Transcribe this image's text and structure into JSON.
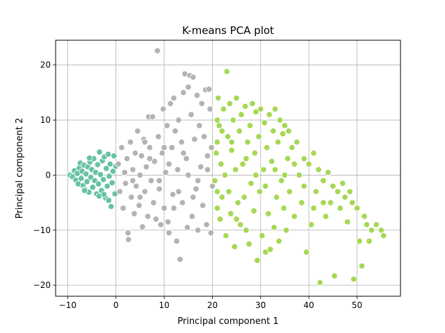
{
  "chart_data": {
    "type": "scatter",
    "title": "K-means PCA plot",
    "xlabel": "Principal component 1",
    "ylabel": "Principal component 2",
    "xlim": [
      -12.5,
      59
    ],
    "ylim": [
      -22,
      24.5
    ],
    "xticks": [
      -10,
      0,
      10,
      20,
      30,
      40,
      50
    ],
    "yticks": [
      -20,
      -10,
      0,
      10,
      20
    ],
    "grid": true,
    "legend": "none",
    "colors": {
      "cluster_0": "#66c2a5",
      "cluster_1": "#b3b3b3",
      "cluster_2": "#a6d854",
      "marker_edge": "#ffffff",
      "grid": "#b0b0b0",
      "axes": "#000000"
    },
    "series": [
      {
        "color_key": "cluster_0",
        "points": [
          [
            -9.5,
            0
          ],
          [
            -9,
            -0.3
          ],
          [
            -8.6,
            0.8
          ],
          [
            -8.3,
            -0.9
          ],
          [
            -8,
            0.3
          ],
          [
            -7.8,
            -1.6
          ],
          [
            -7.6,
            1.3
          ],
          [
            -7.4,
            2.2
          ],
          [
            -7.2,
            -0.6
          ],
          [
            -7,
            0.7
          ],
          [
            -6.8,
            -1.9
          ],
          [
            -6.6,
            1.8
          ],
          [
            -6.4,
            -2.6
          ],
          [
            -6.2,
            0.2
          ],
          [
            -6,
            -1.2
          ],
          [
            -5.8,
            1.5
          ],
          [
            -5.6,
            -3.1
          ],
          [
            -5.4,
            2.4
          ],
          [
            -5.2,
            -0.4
          ],
          [
            -5,
            1
          ],
          [
            -4.8,
            -2.2
          ],
          [
            -4.6,
            3
          ],
          [
            -4.4,
            -1
          ],
          [
            -4.2,
            0.5
          ],
          [
            -4,
            -3.4
          ],
          [
            -3.8,
            1.9
          ],
          [
            -3.6,
            -1.6
          ],
          [
            -3.4,
            4.2
          ],
          [
            -3.2,
            0.1
          ],
          [
            -3,
            -2.8
          ],
          [
            -2.8,
            2.6
          ],
          [
            -2.6,
            -0.8
          ],
          [
            -2.4,
            3.3
          ],
          [
            -2.2,
            -4.1
          ],
          [
            -2,
            1.2
          ],
          [
            -1.8,
            -2
          ],
          [
            -1.6,
            3.8
          ],
          [
            -1.4,
            -0.2
          ],
          [
            -1.2,
            2
          ],
          [
            -1,
            -5.7
          ],
          [
            -0.8,
            -1.4
          ],
          [
            -0.6,
            0.7
          ],
          [
            -0.4,
            3.5
          ],
          [
            -0.2,
            -3.4
          ],
          [
            0,
            1.6
          ],
          [
            -3.5,
            -3.8
          ],
          [
            -2.5,
            -3.5
          ],
          [
            -1.5,
            -4.6
          ],
          [
            -6.5,
            -2.8
          ],
          [
            -5.5,
            3.1
          ]
        ]
      },
      {
        "color_key": "cluster_1",
        "points": [
          [
            0.5,
            2
          ],
          [
            0.8,
            -3
          ],
          [
            1.2,
            5
          ],
          [
            1.5,
            -6
          ],
          [
            1.8,
            0.5
          ],
          [
            2,
            -1.5
          ],
          [
            2.3,
            3
          ],
          [
            2.5,
            -10.5
          ],
          [
            2.6,
            -11.7
          ],
          [
            3,
            6
          ],
          [
            3.2,
            -4
          ],
          [
            3.5,
            1
          ],
          [
            3.8,
            -7
          ],
          [
            4,
            4
          ],
          [
            4.2,
            -2
          ],
          [
            4.5,
            8
          ],
          [
            4.8,
            -5.5
          ],
          [
            5,
            0
          ],
          [
            5.3,
            3.5
          ],
          [
            5.5,
            -9.4
          ],
          [
            5.8,
            6.5
          ],
          [
            6,
            -3
          ],
          [
            6.3,
            1.5
          ],
          [
            6.6,
            -7.5
          ],
          [
            6.8,
            10.6
          ],
          [
            7,
            5
          ],
          [
            7.3,
            -1
          ],
          [
            7.6,
            10.6
          ],
          [
            7.8,
            -5
          ],
          [
            8,
            2.5
          ],
          [
            8.3,
            -8
          ],
          [
            8.6,
            22.6
          ],
          [
            8.8,
            7
          ],
          [
            9,
            -2.5
          ],
          [
            9.3,
            -9
          ],
          [
            9.6,
            4
          ],
          [
            9.8,
            12
          ],
          [
            10,
            -6
          ],
          [
            10.3,
            0.5
          ],
          [
            10.6,
            9
          ],
          [
            10.8,
            -8.5
          ],
          [
            11,
            -10.5
          ],
          [
            11.3,
            13
          ],
          [
            11.6,
            5
          ],
          [
            11.8,
            -3.5
          ],
          [
            12,
            14
          ],
          [
            12.3,
            8
          ],
          [
            12.6,
            -12
          ],
          [
            12.8,
            1
          ],
          [
            13,
            10
          ],
          [
            13.3,
            -15.3
          ],
          [
            13.6,
            6
          ],
          [
            13.8,
            -5
          ],
          [
            14,
            15
          ],
          [
            14.3,
            18.4
          ],
          [
            14.6,
            3
          ],
          [
            14.8,
            -9.5
          ],
          [
            15,
            16
          ],
          [
            15.3,
            18.1
          ],
          [
            15.6,
            11
          ],
          [
            15.8,
            -7.5
          ],
          [
            16,
            17.8
          ],
          [
            16.3,
            6.5
          ],
          [
            16.6,
            -2.5
          ],
          [
            16.8,
            14.5
          ],
          [
            17,
            -10
          ],
          [
            17.3,
            9
          ],
          [
            17.6,
            1.5
          ],
          [
            17.8,
            13
          ],
          [
            18,
            -5.5
          ],
          [
            18.3,
            7
          ],
          [
            18.6,
            15.5
          ],
          [
            18.8,
            -9
          ],
          [
            19,
            3.5
          ],
          [
            19.3,
            15.6
          ],
          [
            19.5,
            12
          ],
          [
            19.7,
            -10.5
          ],
          [
            19.8,
            5
          ],
          [
            20,
            -2
          ],
          [
            3.5,
            -1
          ],
          [
            5,
            -4
          ],
          [
            7,
            3
          ],
          [
            9,
            -1
          ],
          [
            11,
            2
          ],
          [
            13,
            -3
          ],
          [
            15,
            0
          ],
          [
            17,
            -1
          ],
          [
            19,
            1
          ],
          [
            6,
            6
          ],
          [
            10,
            5
          ],
          [
            14,
            4
          ],
          [
            16,
            -4
          ],
          [
            12,
            -6
          ]
        ]
      },
      {
        "color_key": "cluster_2",
        "points": [
          [
            20.5,
            -1
          ],
          [
            20.8,
            4
          ],
          [
            21,
            -6
          ],
          [
            21.2,
            14
          ],
          [
            21.4,
            9
          ],
          [
            21.6,
            -8
          ],
          [
            21.8,
            2
          ],
          [
            22,
            -4
          ],
          [
            22.3,
            12
          ],
          [
            22.6,
            0
          ],
          [
            22.8,
            -11
          ],
          [
            23,
            18.8
          ],
          [
            23.2,
            7
          ],
          [
            23.4,
            -3
          ],
          [
            23.6,
            13
          ],
          [
            23.8,
            -7
          ],
          [
            24,
            4.5
          ],
          [
            24.3,
            10
          ],
          [
            24.6,
            -13
          ],
          [
            24.8,
            1
          ],
          [
            25,
            14
          ],
          [
            25.3,
            -5
          ],
          [
            25.6,
            8
          ],
          [
            25.8,
            -9
          ],
          [
            26,
            11
          ],
          [
            26.3,
            2
          ],
          [
            26.6,
            -4
          ],
          [
            26.8,
            12.5
          ],
          [
            27,
            -10
          ],
          [
            27.3,
            6
          ],
          [
            27.6,
            -12.5
          ],
          [
            27.8,
            9
          ],
          [
            28,
            -1.5
          ],
          [
            28.3,
            13
          ],
          [
            28.6,
            -6.5
          ],
          [
            28.8,
            4
          ],
          [
            29,
            11.5
          ],
          [
            29.3,
            -15.5
          ],
          [
            29.6,
            7
          ],
          [
            29.8,
            -3
          ],
          [
            30,
            12
          ],
          [
            30.3,
            -11
          ],
          [
            30.6,
            1
          ],
          [
            30.8,
            9.5
          ],
          [
            31,
            -14
          ],
          [
            31.3,
            5
          ],
          [
            31.6,
            -7
          ],
          [
            31.8,
            11
          ],
          [
            32,
            -13.5
          ],
          [
            32.3,
            2.5
          ],
          [
            32.6,
            8
          ],
          [
            32.8,
            -9.5
          ],
          [
            33,
            12
          ],
          [
            33.3,
            -4
          ],
          [
            33.6,
            6
          ],
          [
            33.8,
            -12
          ],
          [
            34,
            10
          ],
          [
            34.3,
            -1
          ],
          [
            34.6,
            7.5
          ],
          [
            34.8,
            -6
          ],
          [
            35,
            9
          ],
          [
            35.3,
            -10
          ],
          [
            35.6,
            3
          ],
          [
            35.8,
            8
          ],
          [
            36,
            -3
          ],
          [
            36.5,
            5
          ],
          [
            37,
            -7.5
          ],
          [
            37.5,
            6
          ],
          [
            38,
            0
          ],
          [
            38.5,
            -5
          ],
          [
            39,
            3
          ],
          [
            39.5,
            -14
          ],
          [
            40,
            2
          ],
          [
            40.5,
            -9
          ],
          [
            41,
            4
          ],
          [
            41.5,
            -3
          ],
          [
            42,
            1
          ],
          [
            42.3,
            -19.5
          ],
          [
            43,
            -1
          ],
          [
            43.5,
            -7.5
          ],
          [
            44,
            0.5
          ],
          [
            44.5,
            -5
          ],
          [
            45,
            -2
          ],
          [
            45.3,
            -18.3
          ],
          [
            46,
            -3
          ],
          [
            46.5,
            -6
          ],
          [
            47,
            -1.5
          ],
          [
            47.5,
            -4
          ],
          [
            48,
            -8.5
          ],
          [
            48.5,
            -3
          ],
          [
            49,
            -5
          ],
          [
            49.3,
            -18.9
          ],
          [
            50,
            -6
          ],
          [
            50.5,
            -12
          ],
          [
            51,
            -16.5
          ],
          [
            51.5,
            -7.5
          ],
          [
            52,
            -9
          ],
          [
            52.5,
            -12
          ],
          [
            53,
            -10
          ],
          [
            54,
            -9
          ],
          [
            55,
            -10
          ],
          [
            55.5,
            -11
          ],
          [
            21,
            10
          ],
          [
            21,
            6
          ],
          [
            21,
            -3
          ],
          [
            22,
            8
          ],
          [
            24,
            6
          ],
          [
            25,
            -8
          ],
          [
            27,
            3
          ],
          [
            29,
            0
          ],
          [
            31,
            -2
          ],
          [
            33,
            1
          ],
          [
            35,
            0
          ],
          [
            37,
            2
          ],
          [
            39,
            -2
          ],
          [
            41,
            -6
          ],
          [
            43,
            -5
          ]
        ]
      }
    ]
  }
}
